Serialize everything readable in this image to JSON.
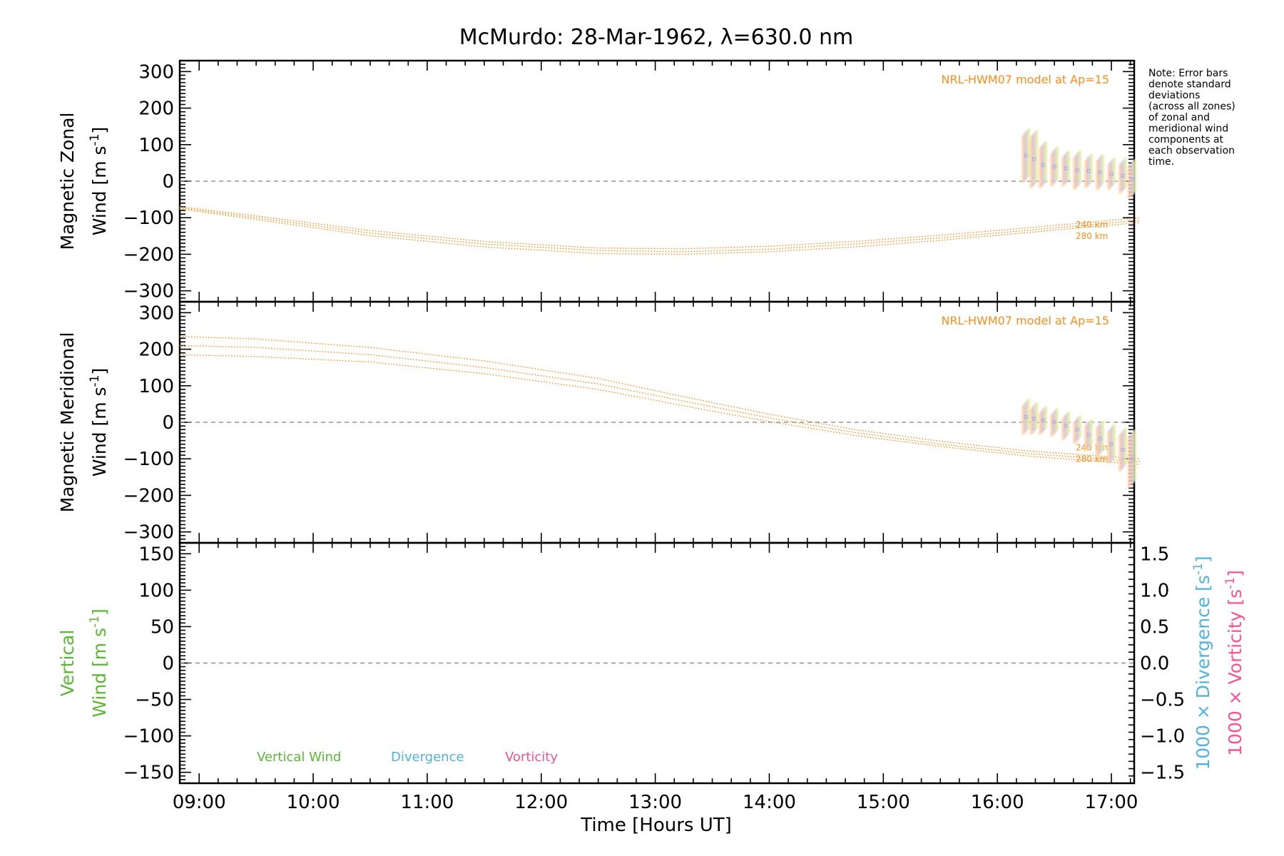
{
  "title": "McMurdo: 28-Mar-1962, λ=630.0 nm",
  "note": [
    "Note: Error bars",
    "denote standard",
    "deviations",
    "(across all zones)",
    "of zonal and",
    "meridional wind",
    "components at",
    "each observation",
    "time."
  ],
  "colors": {
    "model": "#ff8c1a",
    "vertical": "#5bb832",
    "divergence": "#4fb3e0",
    "vorticity": "#ff4f8f",
    "zero_line": "#808080",
    "axis": "#000000"
  },
  "chart_data": [
    {
      "type": "line",
      "panel": "zonal",
      "ylabel_line1": "Magnetic Zonal",
      "ylabel_line2_word": "Wind",
      "ylabel_units": "[m s",
      "ylabel_sup": "-1",
      "ylabel_close": "]",
      "ylim": [
        -330,
        330
      ],
      "yticks": [
        300,
        200,
        100,
        0,
        -100,
        -200,
        -300
      ],
      "ytick_labels": [
        "300",
        "200",
        "100",
        "0",
        "−100",
        "−200",
        "−300"
      ],
      "model_label": "NRL-HWM07 model at Ap=15",
      "altitude_labels": [
        "240 km",
        "280 km"
      ],
      "series": [
        {
          "x": [
            8.83,
            9.5,
            10.5,
            11.5,
            12.5,
            13.25,
            14,
            14.75,
            15.5,
            16.25,
            17.25
          ],
          "y": [
            -70,
            -95,
            -135,
            -165,
            -183,
            -185,
            -178,
            -165,
            -148,
            -128,
            -100
          ]
        },
        {
          "x": [
            8.83,
            9.5,
            10.5,
            11.5,
            12.5,
            13.25,
            14,
            14.75,
            15.5,
            16.25,
            17.25
          ],
          "y": [
            -73,
            -100,
            -142,
            -172,
            -190,
            -193,
            -186,
            -172,
            -155,
            -135,
            -107
          ]
        },
        {
          "x": [
            8.83,
            9.5,
            10.5,
            11.5,
            12.5,
            13.25,
            14,
            14.75,
            15.5,
            16.25,
            17.25
          ],
          "y": [
            -76,
            -105,
            -149,
            -180,
            -198,
            -200,
            -193,
            -180,
            -162,
            -141,
            -113
          ]
        }
      ],
      "obs": [
        {
          "t": 16.25,
          "v": 70,
          "e": 65
        },
        {
          "t": 16.32,
          "v": 60,
          "e": 70
        },
        {
          "t": 16.4,
          "v": 45,
          "e": 55
        },
        {
          "t": 16.5,
          "v": 40,
          "e": 45
        },
        {
          "t": 16.6,
          "v": 35,
          "e": 40
        },
        {
          "t": 16.7,
          "v": 30,
          "e": 45
        },
        {
          "t": 16.8,
          "v": 28,
          "e": 38
        },
        {
          "t": 16.9,
          "v": 25,
          "e": 40
        },
        {
          "t": 17.0,
          "v": 20,
          "e": 35
        },
        {
          "t": 17.1,
          "v": 15,
          "e": 40
        },
        {
          "t": 17.18,
          "v": 5,
          "e": 45
        }
      ]
    },
    {
      "type": "line",
      "panel": "meridional",
      "ylabel_line1": "Magnetic Meridional",
      "ylabel_line2_word": "Wind",
      "ylabel_units": "[m s",
      "ylabel_sup": "-1",
      "ylabel_close": "]",
      "ylim": [
        -330,
        330
      ],
      "yticks": [
        300,
        200,
        100,
        0,
        -100,
        -200,
        -300
      ],
      "ytick_labels": [
        "300",
        "200",
        "100",
        "0",
        "−100",
        "−200",
        "−300"
      ],
      "model_label": "NRL-HWM07 model at Ap=15",
      "altitude_labels": [
        "240 km",
        "280 km"
      ],
      "series": [
        {
          "x": [
            8.83,
            9.5,
            10.5,
            11.5,
            12.5,
            13.25,
            14,
            14.75,
            15.5,
            16.25,
            17.25
          ],
          "y": [
            235,
            228,
            205,
            168,
            120,
            70,
            22,
            -20,
            -52,
            -78,
            -100
          ]
        },
        {
          "x": [
            8.83,
            9.5,
            10.5,
            11.5,
            12.5,
            13.25,
            14,
            14.75,
            15.5,
            16.25,
            17.25
          ],
          "y": [
            210,
            205,
            185,
            150,
            105,
            58,
            12,
            -28,
            -60,
            -85,
            -108
          ]
        },
        {
          "x": [
            8.83,
            9.5,
            10.5,
            11.5,
            12.5,
            13.25,
            14,
            14.75,
            15.5,
            16.25,
            17.25
          ],
          "y": [
            185,
            180,
            165,
            133,
            90,
            45,
            2,
            -36,
            -66,
            -92,
            -115
          ]
        }
      ],
      "obs": [
        {
          "t": 16.25,
          "v": 15,
          "e": 40
        },
        {
          "t": 16.32,
          "v": 10,
          "e": 35
        },
        {
          "t": 16.4,
          "v": 5,
          "e": 30
        },
        {
          "t": 16.5,
          "v": 0,
          "e": 30
        },
        {
          "t": 16.6,
          "v": -10,
          "e": 30
        },
        {
          "t": 16.7,
          "v": -20,
          "e": 30
        },
        {
          "t": 16.8,
          "v": -35,
          "e": 35
        },
        {
          "t": 16.9,
          "v": -45,
          "e": 40
        },
        {
          "t": 17.0,
          "v": -60,
          "e": 45
        },
        {
          "t": 17.1,
          "v": -75,
          "e": 50
        },
        {
          "t": 17.18,
          "v": -100,
          "e": 70
        }
      ]
    },
    {
      "type": "line",
      "panel": "vertical",
      "ylabel_line1": "Vertical",
      "ylabel_line2_word": "Wind",
      "ylabel_units": "[m s",
      "ylabel_sup": "-1",
      "ylabel_close": "]",
      "ylim": [
        -165,
        165
      ],
      "yticks": [
        150,
        100,
        50,
        0,
        -50,
        -100,
        -150
      ],
      "ytick_labels": [
        "150",
        "100",
        "50",
        "0",
        "−50",
        "−100",
        "−150"
      ],
      "y2lim": [
        -1.65,
        1.65
      ],
      "y2ticks": [
        1.5,
        1.0,
        0.5,
        0.0,
        -0.5,
        -1.0,
        -1.5
      ],
      "y2tick_labels": [
        "1.5",
        "1.0",
        "0.5",
        "0.0",
        "−0.5",
        "−1.0",
        "−1.5"
      ],
      "y2label_div_prefix": "1000 × Divergence",
      "y2label_vort_prefix": "1000 × Vorticity",
      "y2label_units": "[s",
      "y2label_sup": "-1",
      "y2label_close": "]",
      "legend": [
        "Vertical Wind",
        "Divergence",
        "Vorticity"
      ]
    }
  ],
  "x_axis": {
    "xlim": [
      8.83,
      17.2
    ],
    "ticks": [
      9,
      10,
      11,
      12,
      13,
      14,
      15,
      16,
      17
    ],
    "tick_labels": [
      "09:00",
      "10:00",
      "11:00",
      "12:00",
      "13:00",
      "14:00",
      "15:00",
      "16:00",
      "17:00"
    ],
    "label": "Time [Hours UT]"
  }
}
